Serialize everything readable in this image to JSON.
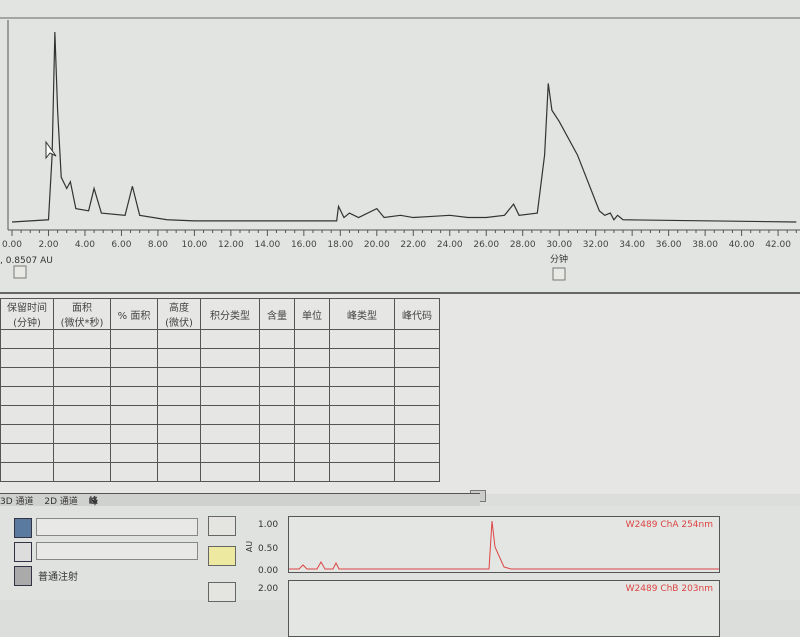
{
  "chart_data": {
    "type": "line",
    "xlabel": "分钟",
    "xlim": [
      0,
      43
    ],
    "ylim": [
      0,
      0.9
    ],
    "grid": false,
    "xticks": [
      "0.00",
      "2.00",
      "4.00",
      "6.00",
      "8.00",
      "10.00",
      "12.00",
      "14.00",
      "16.00",
      "18.00",
      "20.00",
      "22.00",
      "24.00",
      "26.00",
      "28.00",
      "30.00",
      "32.00",
      "34.00",
      "36.00",
      "38.00",
      "40.00",
      "42.00"
    ],
    "cursor_readout": ", 0.8507 AU",
    "x": [
      0,
      2.0,
      2.2,
      2.35,
      2.5,
      2.7,
      3.0,
      3.2,
      3.5,
      4.2,
      4.5,
      4.9,
      6.2,
      6.6,
      7.0,
      8.5,
      10,
      17.8,
      17.9,
      18.2,
      18.5,
      19,
      20,
      20.4,
      21.3,
      22,
      23,
      24,
      25,
      26,
      27,
      27.5,
      27.8,
      28.8,
      29.2,
      29.4,
      29.6,
      30,
      31,
      32.2,
      32.5,
      32.8,
      33,
      33.2,
      33.5,
      43
    ],
    "y": [
      0,
      0.01,
      0.3,
      0.85,
      0.5,
      0.2,
      0.15,
      0.18,
      0.06,
      0.05,
      0.15,
      0.04,
      0.03,
      0.16,
      0.03,
      0.01,
      0.005,
      0.005,
      0.07,
      0.02,
      0.04,
      0.02,
      0.06,
      0.02,
      0.03,
      0.02,
      0.025,
      0.03,
      0.02,
      0.02,
      0.03,
      0.08,
      0.03,
      0.04,
      0.3,
      0.62,
      0.5,
      0.45,
      0.3,
      0.05,
      0.03,
      0.04,
      0.01,
      0.03,
      0.01,
      0
    ],
    "color": "#333333"
  },
  "table": {
    "headers": [
      "保留时间\n(分钟)",
      "面积\n(微伏*秒)",
      "% 面积",
      "高度\n(微伏)",
      "积分类型",
      "含量",
      "单位",
      "峰类型",
      "峰代码"
    ],
    "rows": 8
  },
  "tabs": [
    "3D 通道",
    "2D 通道",
    "峰"
  ],
  "bottom": {
    "injection_label": "普通注射",
    "mini1": {
      "label": "W2489 ChA 254nm",
      "yticks": [
        "1.00",
        "0.50",
        "0.00"
      ],
      "ylabel": "AU"
    },
    "mini2": {
      "label": "W2489 ChB 203nm",
      "yticks": [
        "2.00"
      ]
    }
  }
}
